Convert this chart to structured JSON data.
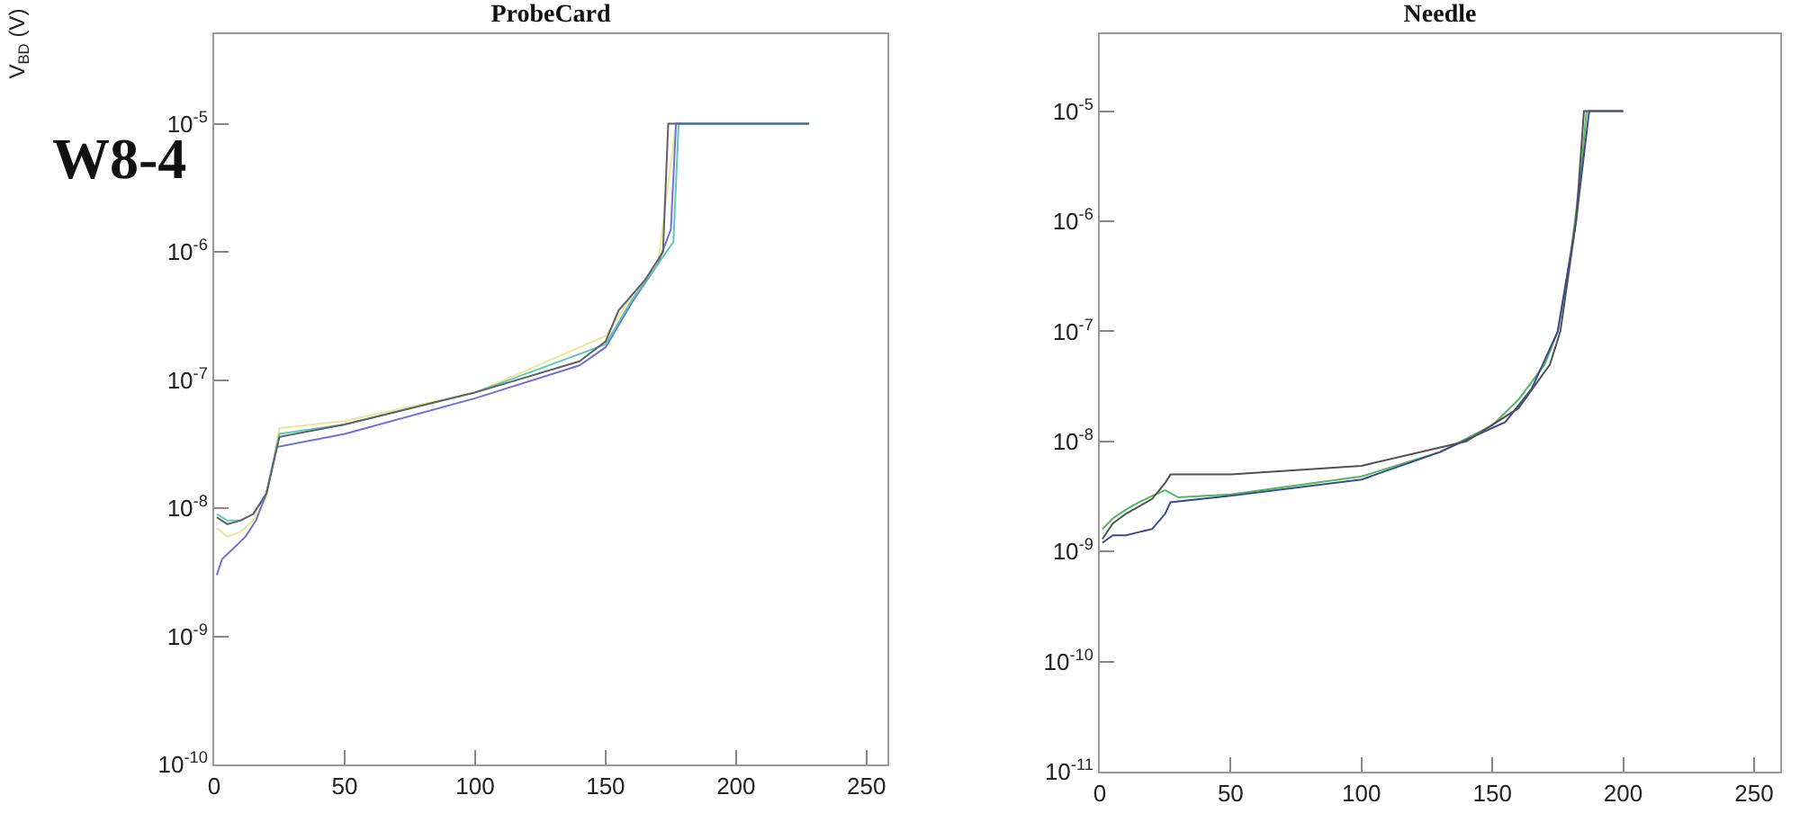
{
  "chart_data": [
    {
      "type": "line",
      "title": "ProbeCard",
      "ylabel": "V$_{BD}$ (V)",
      "annotations": [
        "W8-4"
      ],
      "log": "y",
      "grid": false,
      "xlim": [
        0,
        258
      ],
      "xticks": [
        0,
        50,
        100,
        150,
        200,
        250
      ],
      "ylim": [
        1e-10,
        5e-05
      ],
      "yticks": [
        {
          "value": 1e-10,
          "label": "10$^{-10}$"
        },
        {
          "value": 1e-09,
          "label": "10$^{-9}$"
        },
        {
          "value": 1e-08,
          "label": "10$^{-8}$"
        },
        {
          "value": 1e-07,
          "label": "10$^{-7}$"
        },
        {
          "value": 1e-06,
          "label": "10$^{-6}$"
        },
        {
          "value": 1e-05,
          "label": "10$^{-5}$"
        }
      ],
      "series": [
        {
          "color": "#e8e89a",
          "x": [
            1,
            5,
            10,
            15,
            20,
            25,
            50,
            100,
            150,
            160,
            170,
            177
          ],
          "values": [
            7e-09,
            6e-09,
            6.5e-09,
            8e-09,
            1.2e-08,
            4.2e-08,
            4.8e-08,
            8e-08,
            2.2e-07,
            4.5e-07,
            8e-07,
            1e-05
          ]
        },
        {
          "color": "#7070d8",
          "x": [
            1,
            3,
            8,
            12,
            16,
            20,
            24,
            50,
            100,
            140,
            150,
            160,
            170,
            175,
            177,
            200,
            228
          ],
          "values": [
            3e-09,
            4e-09,
            5e-09,
            6e-09,
            8e-09,
            1.3e-08,
            3e-08,
            3.8e-08,
            7.2e-08,
            1.3e-07,
            1.8e-07,
            4e-07,
            8e-07,
            1.5e-06,
            1e-05,
            1e-05,
            1e-05
          ]
        },
        {
          "color": "#60c8b8",
          "x": [
            1,
            5,
            10,
            15,
            20,
            25,
            50,
            100,
            150,
            160,
            170,
            176,
            178,
            200,
            228
          ],
          "values": [
            9e-09,
            8e-09,
            8e-09,
            9e-09,
            1.3e-08,
            3.8e-08,
            4.5e-08,
            8e-08,
            1.9e-07,
            4.2e-07,
            8e-07,
            1.2e-06,
            1e-05,
            1e-05,
            1e-05
          ]
        },
        {
          "color": "#606068",
          "x": [
            1,
            5,
            10,
            15,
            20,
            25,
            50,
            100,
            140,
            150,
            155,
            165,
            172,
            174,
            200,
            228
          ],
          "values": [
            8.5e-09,
            7.5e-09,
            8e-09,
            9e-09,
            1.3e-08,
            3.6e-08,
            4.5e-08,
            8e-08,
            1.4e-07,
            2e-07,
            3.5e-07,
            6e-07,
            1e-06,
            1e-05,
            1e-05,
            1e-05
          ]
        }
      ]
    },
    {
      "type": "line",
      "title": "Needle",
      "log": "y",
      "grid": false,
      "xlim": [
        0,
        260
      ],
      "xticks": [
        0,
        50,
        100,
        150,
        200,
        250
      ],
      "ylim": [
        1e-11,
        5e-05
      ],
      "yticks": [
        {
          "value": 1e-11,
          "label": "10$^{-11}$"
        },
        {
          "value": 1e-10,
          "label": "10$^{-10}$"
        },
        {
          "value": 1e-09,
          "label": "10$^{-9}$"
        },
        {
          "value": 1e-08,
          "label": "10$^{-8}$"
        },
        {
          "value": 1e-07,
          "label": "10$^{-7}$"
        },
        {
          "value": 1e-06,
          "label": "10$^{-6}$"
        },
        {
          "value": 1e-05,
          "label": "10$^{-5}$"
        }
      ],
      "series": [
        {
          "color": "#50b860",
          "x": [
            1,
            5,
            10,
            15,
            20,
            25,
            30,
            50,
            100,
            130,
            150,
            160,
            170,
            175,
            180,
            184,
            186
          ],
          "values": [
            1.6e-09,
            2e-09,
            2.4e-09,
            2.8e-09,
            3.2e-09,
            3.6e-09,
            3.1e-09,
            3.3e-09,
            4.8e-09,
            8e-09,
            1.4e-08,
            2.4e-08,
            5e-08,
            1e-07,
            5e-07,
            3e-06,
            1e-05
          ]
        },
        {
          "color": "#404890",
          "x": [
            1,
            5,
            10,
            15,
            20,
            25,
            27,
            50,
            100,
            130,
            155,
            165,
            175,
            182,
            187,
            200
          ],
          "values": [
            1.2e-09,
            1.4e-09,
            1.4e-09,
            1.5e-09,
            1.6e-09,
            2.2e-09,
            2.8e-09,
            3.2e-09,
            4.5e-09,
            8e-09,
            1.5e-08,
            3e-08,
            1e-07,
            1e-06,
            1e-05,
            1e-05
          ]
        },
        {
          "color": "#505058",
          "x": [
            1,
            5,
            10,
            20,
            25,
            27,
            50,
            100,
            140,
            160,
            172,
            176,
            182,
            185,
            200
          ],
          "values": [
            1.3e-09,
            1.8e-09,
            2.2e-09,
            3e-09,
            4.2e-09,
            5e-09,
            5e-09,
            6e-09,
            1e-08,
            2e-08,
            5e-08,
            1e-07,
            1e-06,
            1e-05,
            1e-05
          ]
        }
      ]
    }
  ]
}
